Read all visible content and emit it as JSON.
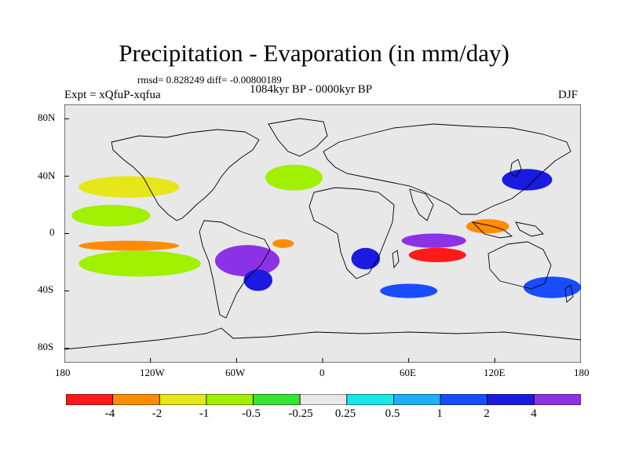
{
  "header": {
    "title": "Precipitation - Evaporation (in mm/day)",
    "stats": "rmsd= 0.828249 diff= -0.00800189",
    "experiment": "Expt = xQfuP-xqfua",
    "period": "1084kyr BP - 0000kyr BP",
    "season": "DJF"
  },
  "axes": {
    "y_ticks": [
      "80N",
      "40N",
      "0",
      "40S",
      "80S"
    ],
    "x_ticks": [
      "180",
      "120W",
      "60W",
      "0",
      "60E",
      "120E",
      "180"
    ]
  },
  "colorbar": {
    "labels": [
      "-4",
      "-2",
      "-1",
      "-0.5",
      "-0.25",
      "0.25",
      "0.5",
      "1",
      "2",
      "4"
    ],
    "colors": [
      "#ff1a1a",
      "#ff8c00",
      "#e6e619",
      "#a0f000",
      "#32e632",
      "#e8e8e8",
      "#19e6e6",
      "#1ab0ff",
      "#1a4cff",
      "#1a1ae0",
      "#8c32e6"
    ]
  },
  "chart_data": {
    "type": "heatmap",
    "title": "Precipitation - Evaporation (in mm/day)",
    "subtitle": "1084kyr BP - 0000kyr BP",
    "xlim": [
      -180,
      180
    ],
    "ylim": [
      -90,
      90
    ],
    "contour_levels": [
      -4,
      -2,
      -1,
      -0.5,
      -0.25,
      0.25,
      0.5,
      1,
      2,
      4
    ],
    "regions": [
      {
        "lon": [
          -170,
          -100
        ],
        "lat": [
          25,
          40
        ],
        "value": -1
      },
      {
        "lon": [
          -175,
          -120
        ],
        "lat": [
          5,
          20
        ],
        "value": -0.5
      },
      {
        "lon": [
          -170,
          -85
        ],
        "lat": [
          -30,
          -12
        ],
        "value": -0.5
      },
      {
        "lon": [
          -170,
          -100
        ],
        "lat": [
          -12,
          -5
        ],
        "value": -2
      },
      {
        "lon": [
          -40,
          0
        ],
        "lat": [
          30,
          48
        ],
        "value": -0.5
      },
      {
        "lon": [
          -35,
          -20
        ],
        "lat": [
          -10,
          -4
        ],
        "value": -2
      },
      {
        "lon": [
          -75,
          -30
        ],
        "lat": [
          -30,
          -8
        ],
        "value": 4
      },
      {
        "lon": [
          -55,
          -35
        ],
        "lat": [
          -40,
          -25
        ],
        "value": 2
      },
      {
        "lon": [
          20,
          40
        ],
        "lat": [
          -25,
          -10
        ],
        "value": 2
      },
      {
        "lon": [
          55,
          100
        ],
        "lat": [
          -10,
          0
        ],
        "value": 4
      },
      {
        "lon": [
          60,
          100
        ],
        "lat": [
          -20,
          -10
        ],
        "value": -4
      },
      {
        "lon": [
          100,
          130
        ],
        "lat": [
          0,
          10
        ],
        "value": -2
      },
      {
        "lon": [
          125,
          160
        ],
        "lat": [
          30,
          45
        ],
        "value": 2
      },
      {
        "lon": [
          140,
          180
        ],
        "lat": [
          -45,
          -30
        ],
        "value": 1
      },
      {
        "lon": [
          40,
          80
        ],
        "lat": [
          -45,
          -35
        ],
        "value": 1
      }
    ]
  }
}
